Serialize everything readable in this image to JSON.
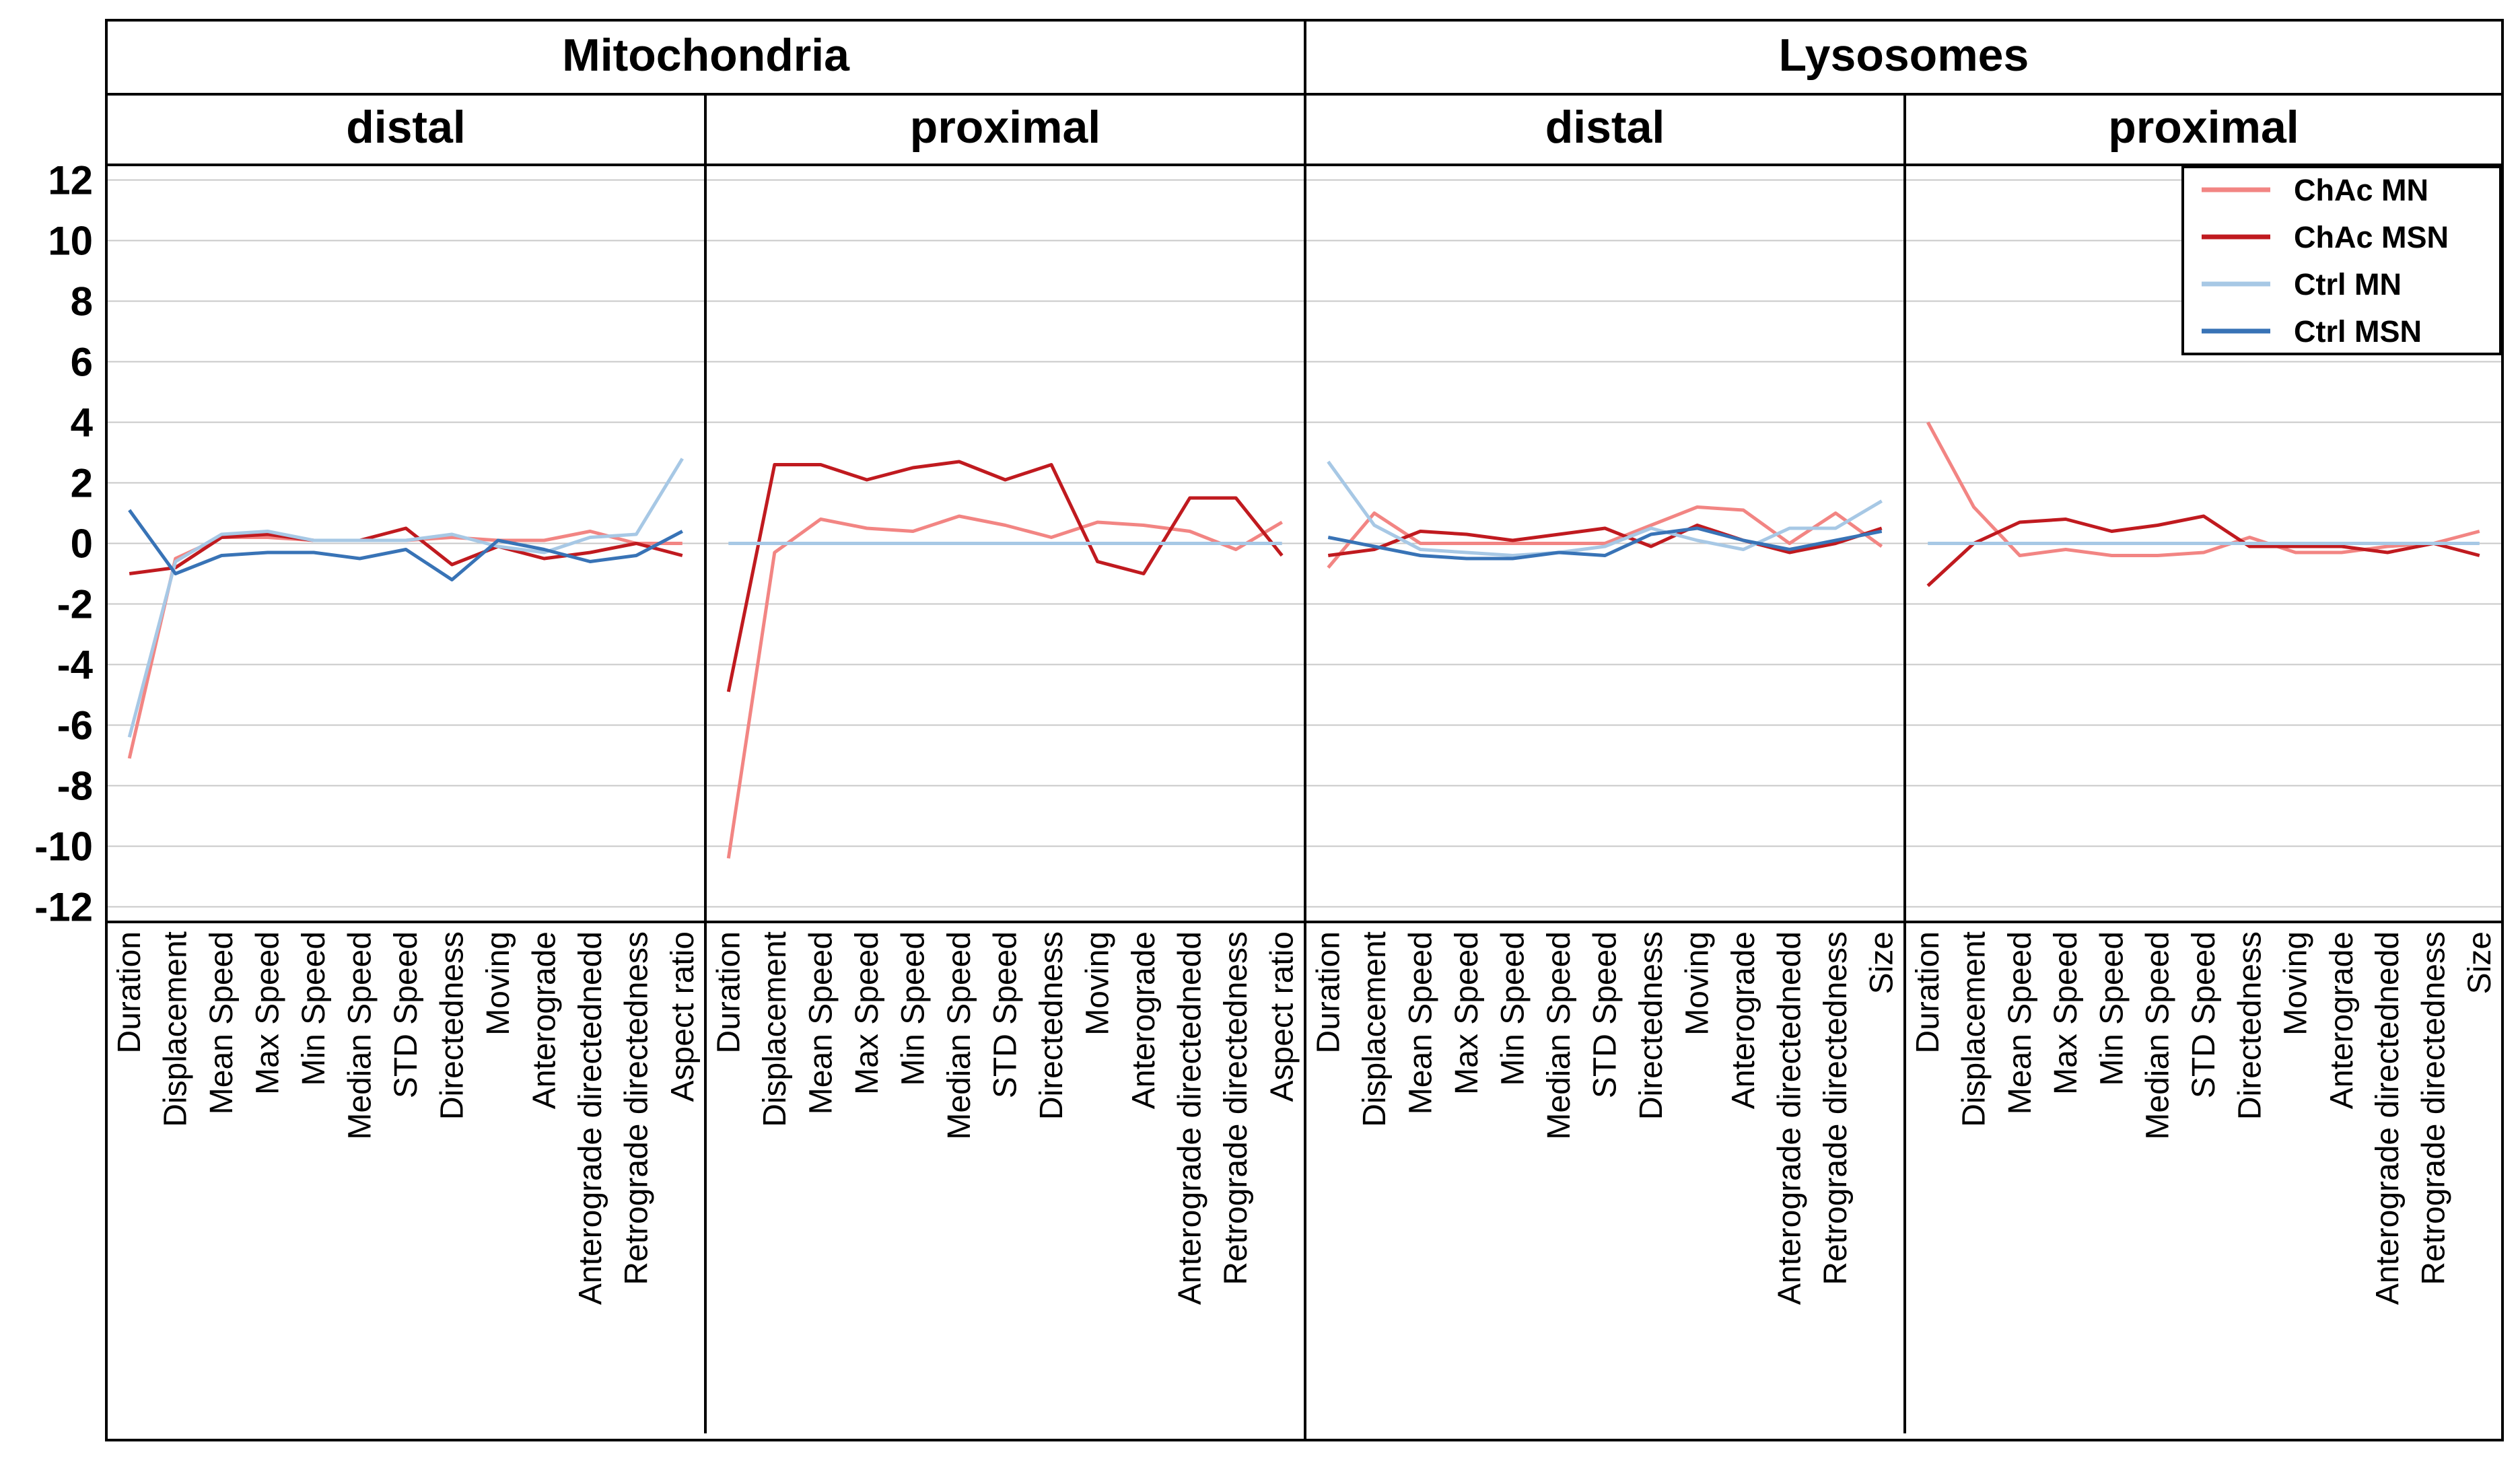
{
  "chart_data": {
    "type": "line",
    "title": "",
    "groups": [
      {
        "name": "Mitochondria",
        "subgroups": [
          "distal",
          "proximal"
        ]
      },
      {
        "name": "Lysosomes",
        "subgroups": [
          "distal",
          "proximal"
        ]
      }
    ],
    "y_ticks": [
      "12",
      "10",
      "8",
      "6",
      "4",
      "2",
      "0",
      "-2",
      "-4",
      "-6",
      "-8",
      "-10",
      "-12"
    ],
    "ylim": [
      -12,
      12
    ],
    "grid": true,
    "legend_position": "top-right",
    "legend": [
      "ChAc MN",
      "ChAc MSN",
      "Ctrl MN",
      "Ctrl MSN"
    ],
    "colors": {
      "ChAc MN": "#f28583",
      "ChAc MSN": "#c01a1f",
      "Ctrl MN": "#a7c8e5",
      "Ctrl MSN": "#3873b6",
      "grid": "#c8c8c8",
      "frame": "#000000"
    },
    "panels": [
      {
        "id": "mito-distal",
        "categories": [
          "Duration",
          "Displacement",
          "Mean Speed",
          "Max Speed",
          "Min Speed",
          "Median Speed",
          "STD Speed",
          "Directedness",
          "Moving",
          "Anterograde",
          "Anterograde directednedd",
          "Retrograde directedness",
          "Aspect ratio"
        ],
        "series": [
          {
            "name": "ChAc MN",
            "values": [
              -7.1,
              -0.5,
              0.2,
              0.2,
              0.1,
              0.1,
              0.1,
              0.2,
              0.1,
              0.1,
              0.4,
              0.0,
              0.0
            ]
          },
          {
            "name": "ChAc MSN",
            "values": [
              -1.0,
              -0.8,
              0.2,
              0.3,
              0.1,
              0.1,
              0.5,
              -0.7,
              -0.1,
              -0.5,
              -0.3,
              0.0,
              -0.4
            ]
          },
          {
            "name": "Ctrl MN",
            "values": [
              -6.4,
              -0.6,
              0.3,
              0.4,
              0.1,
              0.1,
              0.1,
              0.3,
              -0.1,
              -0.3,
              0.2,
              0.3,
              2.8
            ]
          },
          {
            "name": "Ctrl MSN",
            "values": [
              1.1,
              -1.0,
              -0.4,
              -0.3,
              -0.3,
              -0.5,
              -0.2,
              -1.2,
              0.1,
              -0.2,
              -0.6,
              -0.4,
              0.4
            ]
          }
        ]
      },
      {
        "id": "mito-proximal",
        "categories": [
          "Duration",
          "Displacement",
          "Mean Speed",
          "Max Speed",
          "Min Speed",
          "Median Speed",
          "STD Speed",
          "Directedness",
          "Moving",
          "Anterograde",
          "Anterograde directednedd",
          "Retrograde directedness",
          "Aspect ratio"
        ],
        "series": [
          {
            "name": "ChAc MN",
            "values": [
              -10.4,
              -0.3,
              0.8,
              0.5,
              0.4,
              0.9,
              0.6,
              0.2,
              0.7,
              0.6,
              0.4,
              -0.2,
              0.7
            ]
          },
          {
            "name": "ChAc MSN",
            "values": [
              -4.9,
              2.6,
              2.6,
              2.1,
              2.5,
              2.7,
              2.1,
              2.6,
              -0.6,
              -1.0,
              1.5,
              1.5,
              -0.4
            ]
          },
          {
            "name": "Ctrl MN",
            "values": [
              0.0,
              0.0,
              0.0,
              0.0,
              0.0,
              0.0,
              0.0,
              0.0,
              0.0,
              0.0,
              0.0,
              0.0,
              0.0
            ]
          }
        ]
      },
      {
        "id": "lyso-distal",
        "categories": [
          "Duration",
          "Displacement",
          "Mean Speed",
          "Max Speed",
          "Min Speed",
          "Median Speed",
          "STD Speed",
          "Directedness",
          "Moving",
          "Anterograde",
          "Anterograde directednedd",
          "Retrograde directedness",
          "Size"
        ],
        "series": [
          {
            "name": "ChAc MN",
            "values": [
              -0.8,
              1.0,
              0.0,
              0.0,
              0.0,
              0.0,
              0.0,
              0.6,
              1.2,
              1.1,
              0.0,
              1.0,
              -0.1
            ]
          },
          {
            "name": "ChAc MSN",
            "values": [
              -0.4,
              -0.2,
              0.4,
              0.3,
              0.1,
              0.3,
              0.5,
              -0.1,
              0.6,
              0.1,
              -0.3,
              0.0,
              0.5
            ]
          },
          {
            "name": "Ctrl MN",
            "values": [
              2.7,
              0.6,
              -0.2,
              -0.3,
              -0.4,
              -0.3,
              -0.1,
              0.5,
              0.1,
              -0.2,
              0.5,
              0.5,
              1.4
            ]
          },
          {
            "name": "Ctrl MSN",
            "values": [
              0.2,
              -0.1,
              -0.4,
              -0.5,
              -0.5,
              -0.3,
              -0.4,
              0.3,
              0.5,
              0.1,
              -0.2,
              0.1,
              0.4
            ]
          }
        ]
      },
      {
        "id": "lyso-proximal",
        "categories": [
          "Duration",
          "Displacement",
          "Mean Speed",
          "Max Speed",
          "Min Speed",
          "Median Speed",
          "STD Speed",
          "Directedness",
          "Moving",
          "Anterograde",
          "Anterograde directednedd",
          "Retrograde directedness",
          "Size"
        ],
        "series": [
          {
            "name": "ChAc MN",
            "values": [
              4.0,
              1.2,
              -0.4,
              -0.2,
              -0.4,
              -0.4,
              -0.3,
              0.2,
              -0.3,
              -0.3,
              -0.1,
              0.0,
              0.4
            ]
          },
          {
            "name": "ChAc MSN",
            "values": [
              -1.4,
              0.0,
              0.7,
              0.8,
              0.4,
              0.6,
              0.9,
              -0.1,
              -0.1,
              -0.1,
              -0.3,
              0.0,
              -0.4
            ]
          },
          {
            "name": "Ctrl MN",
            "values": [
              0.0,
              0.0,
              0.0,
              0.0,
              0.0,
              0.0,
              0.0,
              0.0,
              0.0,
              0.0,
              0.0,
              0.0,
              0.0
            ]
          }
        ]
      }
    ]
  }
}
